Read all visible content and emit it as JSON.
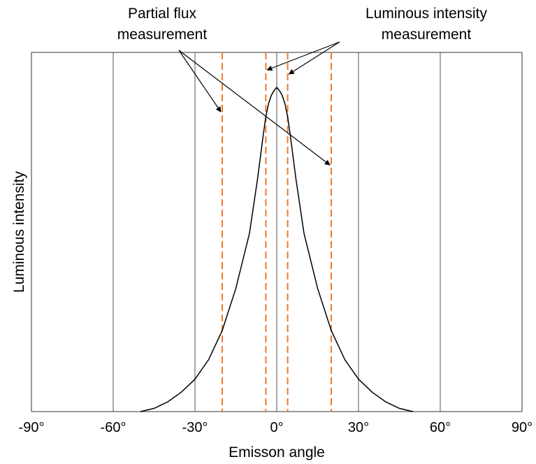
{
  "chart_data": {
    "type": "line",
    "xlabel": "Emisson angle",
    "ylabel": "Luminous intensity",
    "xlim": [
      -90,
      90
    ],
    "ylim": [
      0,
      1.0
    ],
    "x_ticks": [
      -90,
      -60,
      -30,
      0,
      30,
      60,
      90
    ],
    "x_tick_labels": [
      "-90°",
      "-60°",
      "-30°",
      "0°",
      "30°",
      "60°",
      "90°"
    ],
    "grid": "vertical lines at each x tick",
    "series": [
      {
        "color": "#000000",
        "x": [
          -50,
          -45,
          -40,
          -35,
          -30,
          -25,
          -20,
          -15,
          -10,
          -7,
          -5,
          -4,
          -3,
          -2,
          -1,
          0,
          1,
          2,
          3,
          4,
          5,
          7,
          10,
          15,
          20,
          25,
          30,
          35,
          40,
          45,
          50
        ],
        "y": [
          0.0,
          0.01,
          0.03,
          0.06,
          0.1,
          0.16,
          0.25,
          0.38,
          0.55,
          0.72,
          0.85,
          0.91,
          0.95,
          0.975,
          0.99,
          1.0,
          0.99,
          0.975,
          0.95,
          0.91,
          0.85,
          0.72,
          0.55,
          0.38,
          0.25,
          0.16,
          0.1,
          0.06,
          0.03,
          0.01,
          0.0
        ]
      }
    ],
    "dashed_lines": {
      "color": "#f07a2a",
      "x": [
        -20,
        -4,
        4,
        20
      ]
    },
    "annotations": [
      {
        "id": "partial",
        "lines": [
          "Partial flux",
          "measurement"
        ],
        "targets_x": [
          -20,
          20
        ]
      },
      {
        "id": "luminous",
        "lines": [
          "Luminous intensity",
          "measurement"
        ],
        "targets_x": [
          -4,
          4
        ]
      }
    ]
  }
}
